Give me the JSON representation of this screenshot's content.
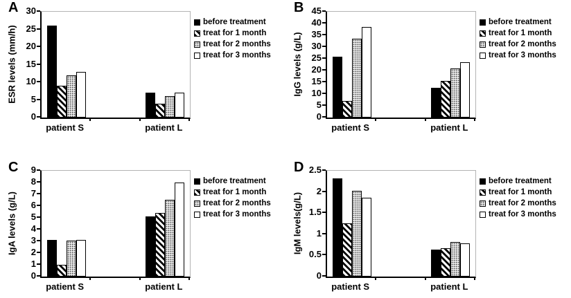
{
  "figure": {
    "background": "#ffffff",
    "text_color": "#000000",
    "plot_border_color": "#b3b3b3",
    "axis_color": "#000000"
  },
  "legend": {
    "position": "right",
    "entries": [
      {
        "label": "before treatment",
        "pattern": "solid-black"
      },
      {
        "label": "treat for 1 month",
        "pattern": "diagonal-stripe"
      },
      {
        "label": "treat for 2 months",
        "pattern": "dotted-gray"
      },
      {
        "label": "treat for 3 months",
        "pattern": "white"
      }
    ]
  },
  "chart_data": [
    {
      "panel": "A",
      "type": "bar",
      "title": "",
      "ylabel": "ESR levels (mm/h)",
      "ylim": [
        0,
        30
      ],
      "yticks": [
        "0",
        "5",
        "10",
        "15",
        "20",
        "25",
        "30"
      ],
      "categories": [
        "patient S",
        "patient L"
      ],
      "grid": false,
      "legend_position": "right",
      "series": [
        {
          "name": "before treatment",
          "pattern": "solid-black",
          "values": [
            26,
            7
          ]
        },
        {
          "name": "treat for 1 month",
          "pattern": "diagonal-stripe",
          "values": [
            9,
            4
          ]
        },
        {
          "name": "treat for 2 months",
          "pattern": "dotted-gray",
          "values": [
            12,
            6
          ]
        },
        {
          "name": "treat for 3 months",
          "pattern": "white",
          "values": [
            13,
            7
          ]
        }
      ]
    },
    {
      "panel": "B",
      "type": "bar",
      "title": "",
      "ylabel": "IgG levels (g/L)",
      "ylim": [
        0,
        45
      ],
      "yticks": [
        "0",
        "5",
        "10",
        "15",
        "20",
        "25",
        "30",
        "35",
        "40",
        "45"
      ],
      "categories": [
        "patient S",
        "patient L"
      ],
      "grid": false,
      "legend_position": "right",
      "series": [
        {
          "name": "before treatment",
          "pattern": "solid-black",
          "values": [
            25.8,
            12.5
          ]
        },
        {
          "name": "treat for 1 month",
          "pattern": "diagonal-stripe",
          "values": [
            7,
            15.5
          ]
        },
        {
          "name": "treat for 2 months",
          "pattern": "dotted-gray",
          "values": [
            33.5,
            21
          ]
        },
        {
          "name": "treat for 3 months",
          "pattern": "white",
          "values": [
            38.5,
            23.5
          ]
        }
      ]
    },
    {
      "panel": "C",
      "type": "bar",
      "title": "",
      "ylabel": "IgA levels (g/L)",
      "ylim": [
        0,
        9
      ],
      "yticks": [
        "0",
        "1",
        "2",
        "3",
        "4",
        "5",
        "6",
        "7",
        "8",
        "9"
      ],
      "categories": [
        "patient S",
        "patient L"
      ],
      "grid": false,
      "legend_position": "right",
      "series": [
        {
          "name": "before treatment",
          "pattern": "solid-black",
          "values": [
            3.1,
            5.1
          ]
        },
        {
          "name": "treat for 1 month",
          "pattern": "diagonal-stripe",
          "values": [
            1,
            5.4
          ]
        },
        {
          "name": "treat for 2 months",
          "pattern": "dotted-gray",
          "values": [
            3.05,
            6.55
          ]
        },
        {
          "name": "treat for 3 months",
          "pattern": "white",
          "values": [
            3.1,
            8
          ]
        }
      ]
    },
    {
      "panel": "D",
      "type": "bar",
      "title": "",
      "ylabel": "IgM levels(g/L)",
      "ylim": [
        0,
        2.5
      ],
      "yticks": [
        "0",
        "0.5",
        "1",
        "1.5",
        "2",
        "2.5"
      ],
      "categories": [
        "patient S",
        "patient L"
      ],
      "grid": false,
      "legend_position": "right",
      "series": [
        {
          "name": "before treatment",
          "pattern": "solid-black",
          "values": [
            2.32,
            0.63
          ]
        },
        {
          "name": "treat for 1 month",
          "pattern": "diagonal-stripe",
          "values": [
            1.25,
            0.67
          ]
        },
        {
          "name": "treat for 2 months",
          "pattern": "dotted-gray",
          "values": [
            2.02,
            0.81
          ]
        },
        {
          "name": "treat for 3 months",
          "pattern": "white",
          "values": [
            1.86,
            0.78
          ]
        }
      ]
    }
  ]
}
